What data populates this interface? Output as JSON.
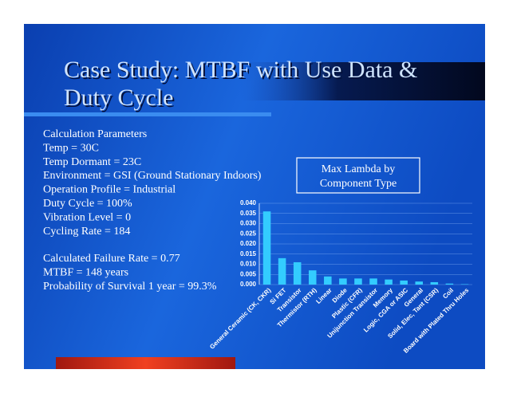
{
  "slide": {
    "title_lines": [
      "Case Study: MTBF with Use Data &",
      "Duty Cycle"
    ],
    "parameters": [
      "Calculation Parameters",
      "Temp = 30C",
      "Temp Dormant = 23C",
      "Environment = GSI (Ground Stationary Indoors)",
      "Operation Profile = Industrial",
      "Duty Cycle = 100%",
      "Vibration Level = 0",
      "Cycling Rate = 184"
    ],
    "results": [
      "Calculated Failure Rate = 0.77",
      "MTBF = 148 years",
      "Probability of Survival 1 year = 99.3%"
    ]
  },
  "chart_data": {
    "type": "bar",
    "title": [
      "Max Lambda by",
      "Component Type"
    ],
    "categories": [
      "General Ceramic (CK, CKR)",
      "Si FET",
      "Transistor",
      "Thermistor (RTH)",
      "Linear",
      "Diode",
      "Plastic (CFR)",
      "Unijunction Transistor",
      "Memory",
      "Logic, CGA or ASIC",
      "General",
      "Solid, Elec, Tant (CSR)",
      "Coil",
      "Board with Plated Thru Holes"
    ],
    "values": [
      0.036,
      0.013,
      0.011,
      0.007,
      0.004,
      0.003,
      0.003,
      0.003,
      0.0025,
      0.002,
      0.0015,
      0.0012,
      0.0005,
      0.0002
    ],
    "color": "#33ccff",
    "ylim": [
      0,
      0.04
    ],
    "yticks": [
      {
        "value": 0,
        "label": "0.000"
      },
      {
        "value": 0.005,
        "label": "0.005"
      },
      {
        "value": 0.01,
        "label": "0.010"
      },
      {
        "value": 0.015,
        "label": "0.015"
      },
      {
        "value": 0.02,
        "label": "0.020"
      },
      {
        "value": 0.025,
        "label": "0.025"
      },
      {
        "value": 0.03,
        "label": "0.030"
      },
      {
        "value": 0.035,
        "label": "0.035"
      },
      {
        "value": 0.04,
        "label": "0.040"
      }
    ],
    "grid": true
  }
}
